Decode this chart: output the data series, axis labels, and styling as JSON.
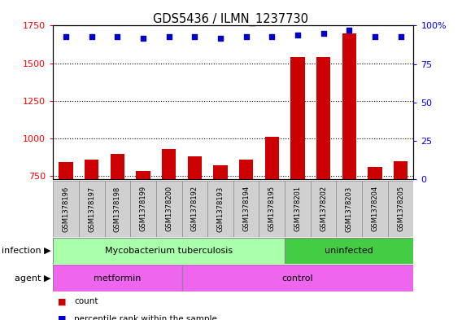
{
  "title": "GDS5436 / ILMN_1237730",
  "samples": [
    "GSM1378196",
    "GSM1378197",
    "GSM1378198",
    "GSM1378199",
    "GSM1378200",
    "GSM1378192",
    "GSM1378193",
    "GSM1378194",
    "GSM1378195",
    "GSM1378201",
    "GSM1378202",
    "GSM1378203",
    "GSM1378204",
    "GSM1378205"
  ],
  "counts": [
    845,
    860,
    900,
    785,
    930,
    880,
    820,
    860,
    1010,
    1540,
    1540,
    1700,
    810,
    850
  ],
  "percentiles": [
    93,
    93,
    93,
    92,
    93,
    93,
    92,
    93,
    93,
    94,
    95,
    97,
    93,
    93
  ],
  "ylim_left": [
    730,
    1750
  ],
  "ylim_right": [
    0,
    100
  ],
  "yticks_left": [
    750,
    1000,
    1250,
    1500,
    1750
  ],
  "yticks_right": [
    0,
    25,
    50,
    75,
    100
  ],
  "bar_color": "#cc0000",
  "dot_color": "#0000cc",
  "bg_color": "#ffffff",
  "sample_box_color": "#d0d0d0",
  "infection_groups": [
    {
      "label": "Mycobacterium tuberculosis",
      "start": 0,
      "end": 8,
      "color": "#aaffaa"
    },
    {
      "label": "uninfected",
      "start": 9,
      "end": 13,
      "color": "#44cc44"
    }
  ],
  "agent_groups": [
    {
      "label": "metformin",
      "start": 0,
      "end": 4,
      "color": "#ee66ee"
    },
    {
      "label": "control",
      "start": 5,
      "end": 13,
      "color": "#ee66ee"
    }
  ],
  "infection_label": "infection",
  "agent_label": "agent",
  "legend_count_label": "count",
  "legend_pct_label": "percentile rank within the sample",
  "grid_color": "black",
  "grid_linestyle": "dotted"
}
